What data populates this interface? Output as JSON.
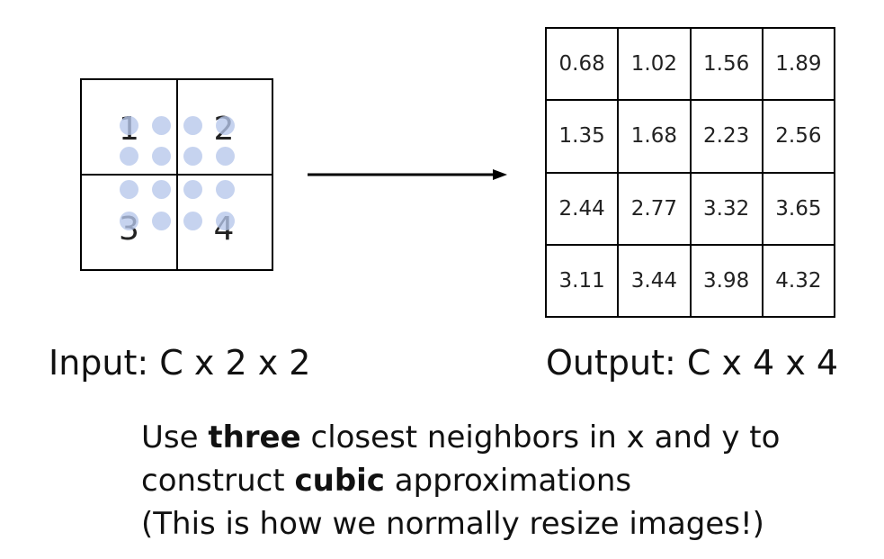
{
  "input_grid": {
    "values": [
      "1",
      "2",
      "3",
      "4"
    ]
  },
  "output_grid": {
    "rows": [
      [
        "0.68",
        "1.02",
        "1.56",
        "1.89"
      ],
      [
        "1.35",
        "1.68",
        "2.23",
        "2.56"
      ],
      [
        "2.44",
        "2.77",
        "3.32",
        "3.65"
      ],
      [
        "3.11",
        "3.44",
        "3.98",
        "4.32"
      ]
    ]
  },
  "captions": {
    "input": "Input: C x 2 x 2",
    "output": "Output: C x 4 x 4"
  },
  "description": {
    "line1_pre": "Use ",
    "line1_bold": "three",
    "line1_post": " closest neighbors in x and y to",
    "line2_pre": "construct ",
    "line2_bold": "cubic",
    "line2_post": " approximations",
    "line3": "(This is how we normally resize images!)"
  },
  "colors": {
    "sample_dot": "#b6c6ea",
    "line": "#000000"
  }
}
